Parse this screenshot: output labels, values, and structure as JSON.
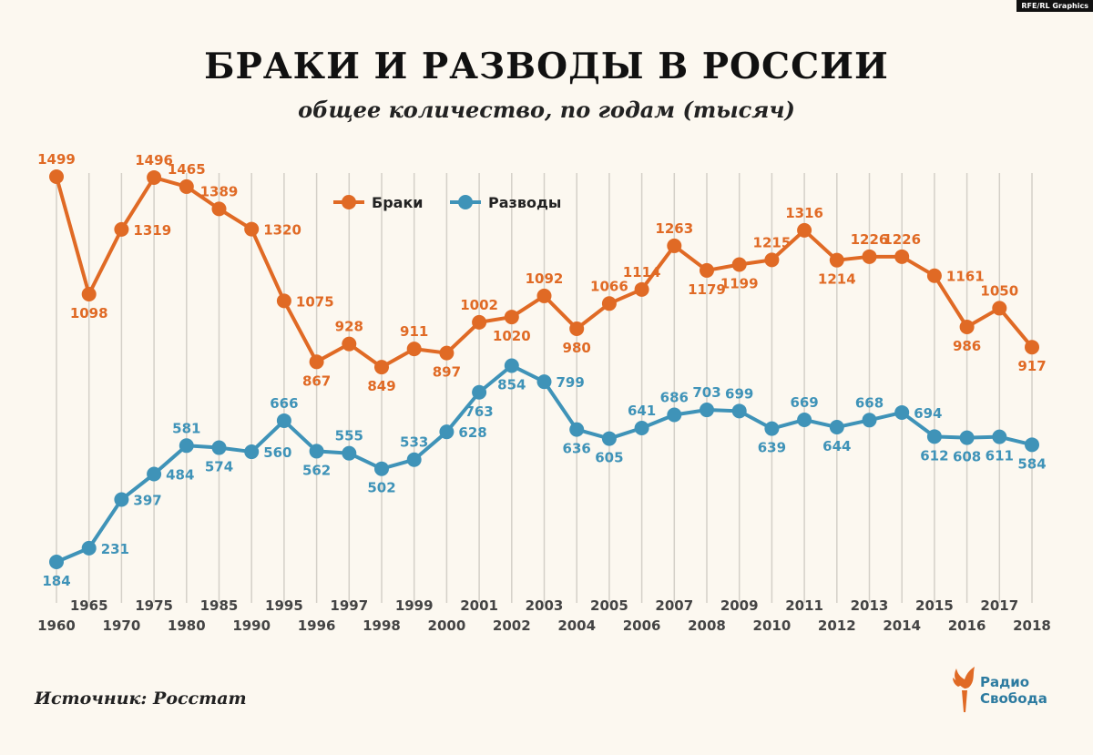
{
  "credit": "RFE/RL Graphics",
  "title": "БРАКИ И РАЗВОДЫ В РОССИИ",
  "subtitle": "общее количество, по годам (тысяч)",
  "source": "Источник: Росстат",
  "logo": {
    "text": "Радио\nСвобода"
  },
  "colors": {
    "marriages": "#e06a25",
    "divorces": "#3f93b8",
    "grid": "#d4d0c8",
    "background": "#fcf8f0"
  },
  "chart_data": {
    "type": "line",
    "title": "БРАКИ И РАЗВОДЫ В РОССИИ",
    "subtitle": "общее количество, по годам (тысяч)",
    "x": [
      "1960",
      "1965",
      "1970",
      "1975",
      "1980",
      "1985",
      "1990",
      "1995",
      "1996",
      "1997",
      "1998",
      "1999",
      "2000",
      "2001",
      "2002",
      "2003",
      "2004",
      "2005",
      "2006",
      "2007",
      "2008",
      "2009",
      "2010",
      "2011",
      "2012",
      "2013",
      "2014",
      "2015",
      "2016",
      "2017",
      "2018"
    ],
    "series": [
      {
        "name": "Браки",
        "color": "#e06a25",
        "values": [
          1499,
          1098,
          1319,
          1496,
          1465,
          1389,
          1320,
          1075,
          867,
          928,
          849,
          911,
          897,
          1002,
          1020,
          1092,
          980,
          1066,
          1114,
          1263,
          1179,
          1199,
          1215,
          1316,
          1214,
          1226,
          1226,
          1161,
          986,
          1050,
          917
        ]
      },
      {
        "name": "Разводы",
        "color": "#3f93b8",
        "values": [
          184,
          231,
          397,
          484,
          581,
          574,
          560,
          666,
          562,
          555,
          502,
          533,
          628,
          763,
          854,
          799,
          636,
          605,
          641,
          686,
          703,
          699,
          639,
          669,
          644,
          668,
          694,
          612,
          608,
          611,
          584
        ]
      }
    ],
    "legend": "top-center",
    "grid": "vertical"
  }
}
